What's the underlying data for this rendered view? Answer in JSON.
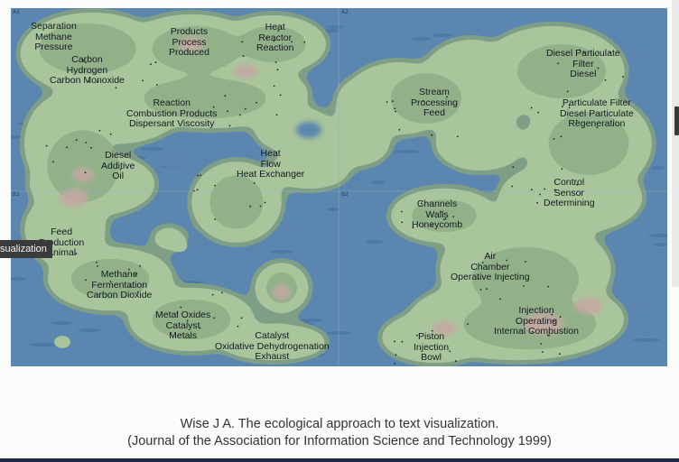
{
  "figure": {
    "corner_markers": [
      "A1",
      "A2",
      "B1",
      "B2"
    ],
    "labels": [
      {
        "id": "separation",
        "lines": [
          "Separation",
          "Methane",
          "Pressure"
        ]
      },
      {
        "id": "products",
        "lines": [
          "Products",
          "Process",
          "Produced"
        ]
      },
      {
        "id": "heat-reactor",
        "lines": [
          "Heat",
          "Reactor",
          "Reaction"
        ]
      },
      {
        "id": "carbon",
        "lines": [
          "Carbon",
          "Hydrogen",
          "Carbon Monoxide"
        ]
      },
      {
        "id": "diesel-filter",
        "lines": [
          "Diesel Particulate",
          "Filter",
          "Diesel"
        ]
      },
      {
        "id": "stream",
        "lines": [
          "Stream",
          "Processing",
          "Feed"
        ]
      },
      {
        "id": "reaction",
        "lines": [
          "Reaction",
          "Combustion Products",
          "Dispersant Viscosity"
        ]
      },
      {
        "id": "particulate",
        "lines": [
          "Particulate Filter",
          "Diesel Particulate",
          "Regeneration"
        ]
      },
      {
        "id": "diesel-additive",
        "lines": [
          "Diesel",
          "Additive",
          "Oil"
        ]
      },
      {
        "id": "heat-flow",
        "lines": [
          "Heat",
          "Flow",
          "Heat Exchanger"
        ]
      },
      {
        "id": "control",
        "lines": [
          "Control",
          "Sensor",
          "Determining"
        ]
      },
      {
        "id": "channels",
        "lines": [
          "Channels",
          "Walls",
          "Honeycomb"
        ]
      },
      {
        "id": "feed",
        "lines": [
          "Feed",
          "Production",
          "Animal"
        ]
      },
      {
        "id": "air",
        "lines": [
          "Air",
          "Chamber",
          "Operative Injecting"
        ]
      },
      {
        "id": "methane",
        "lines": [
          "Methane",
          "Fermentation",
          "Carbon Dioxide"
        ]
      },
      {
        "id": "injection",
        "lines": [
          "Injection",
          "Operating",
          "Internal Combustion"
        ]
      },
      {
        "id": "metal",
        "lines": [
          "Metal Oxides",
          "Catalyst",
          "Metals"
        ]
      },
      {
        "id": "catalyst",
        "lines": [
          "Catalyst",
          "Oxidative Dehydrogenation",
          "Exhaust"
        ]
      },
      {
        "id": "piston",
        "lines": [
          "Piston",
          "Injection",
          "Bowl"
        ]
      }
    ]
  },
  "overlay": {
    "tooltip_text": "visualization"
  },
  "caption": {
    "line1": "Wise J A. The ecological approach to text visualization.",
    "line2": "(Journal of the Association for Information Science and Technology 1999)"
  },
  "colors": {
    "sea": "#5b86b0",
    "land": "#a9c59c",
    "land_mid": "#8fae86",
    "peak": "#c6a8a3"
  }
}
